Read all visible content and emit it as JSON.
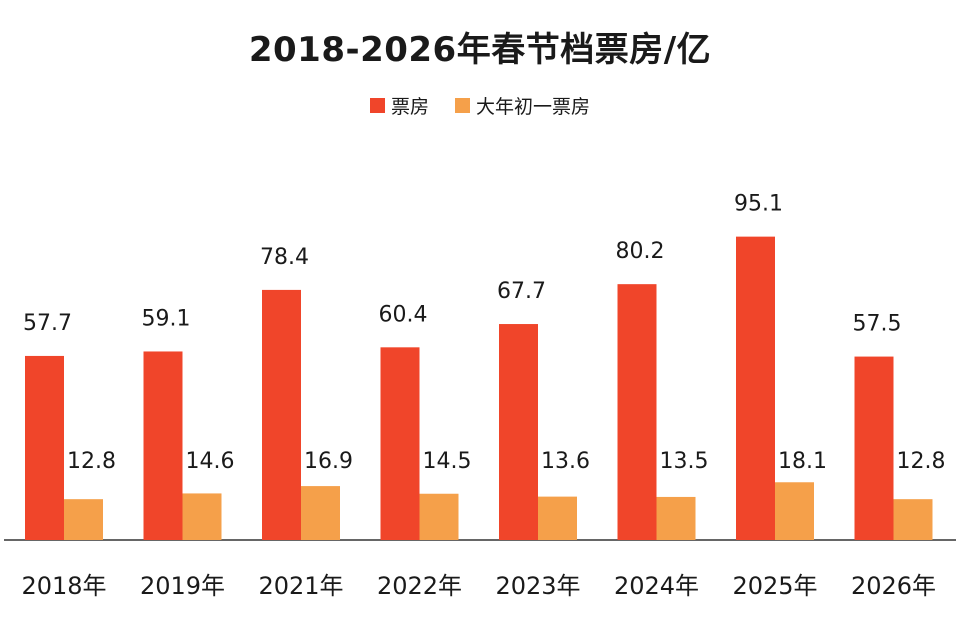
{
  "chart_data": {
    "type": "bar",
    "title": "2018-2026年春节档票房/亿",
    "categories": [
      "2018年",
      "2019年",
      "2021年",
      "2022年",
      "2023年",
      "2024年",
      "2025年",
      "2026年"
    ],
    "series": [
      {
        "name": "票房",
        "color": "#f0452a",
        "values": [
          57.7,
          59.1,
          78.4,
          60.4,
          67.7,
          80.2,
          95.1,
          57.5
        ]
      },
      {
        "name": "大年初一票房",
        "color": "#f5a04a",
        "values": [
          12.8,
          14.6,
          16.9,
          14.5,
          13.6,
          13.5,
          18.1,
          12.8
        ]
      }
    ],
    "xlabel": "",
    "ylabel": "",
    "ylim": [
      0,
      100
    ],
    "legend": "top-center",
    "grid": false
  }
}
